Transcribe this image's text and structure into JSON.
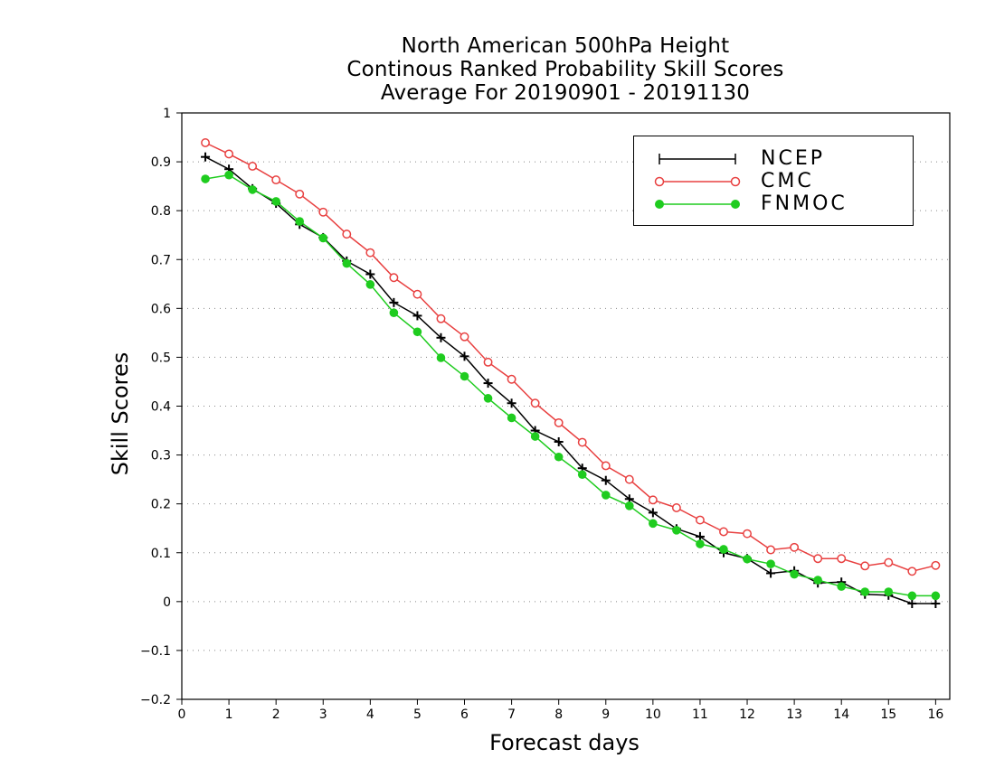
{
  "title": {
    "line1": "North American 500hPa Height",
    "line2": "Continous Ranked Probability Skill Scores",
    "line3": "Average For 20190901 - 20191130"
  },
  "chart_data": {
    "type": "line",
    "xlabel": "Forecast days",
    "ylabel": "Skill Scores",
    "xlim": [
      0,
      16.3
    ],
    "ylim": [
      -0.2,
      1
    ],
    "xticks": [
      "0",
      "1",
      "2",
      "3",
      "4",
      "5",
      "6",
      "7",
      "8",
      "9",
      "10",
      "11",
      "12",
      "13",
      "14",
      "15",
      "16"
    ],
    "yticks": [
      "1",
      "0.9",
      "0.8",
      "0.7",
      "0.6",
      "0.5",
      "0.4",
      "0.3",
      "0.2",
      "0.1",
      "0",
      "-0.1",
      "-0.2"
    ],
    "grid": "horizontal-dotted",
    "legend_position": "top-right",
    "x": [
      0.5,
      1,
      1.5,
      2,
      2.5,
      3,
      3.5,
      4,
      4.5,
      5,
      5.5,
      6,
      6.5,
      7,
      7.5,
      8,
      8.5,
      9,
      9.5,
      10,
      10.5,
      11,
      11.5,
      12,
      12.5,
      13,
      13.5,
      14,
      14.5,
      15,
      15.5,
      16
    ],
    "series": [
      {
        "name": "NCEP",
        "color": "#000000",
        "marker": "plus",
        "values": [
          0.91,
          0.885,
          0.845,
          0.815,
          0.772,
          0.745,
          0.697,
          0.67,
          0.612,
          0.585,
          0.54,
          0.502,
          0.447,
          0.406,
          0.35,
          0.327,
          0.273,
          0.248,
          0.21,
          0.182,
          0.149,
          0.133,
          0.1,
          0.088,
          0.058,
          0.063,
          0.038,
          0.04,
          0.015,
          0.013,
          -0.004,
          -0.004
        ]
      },
      {
        "name": "CMC",
        "color": "#e84040",
        "marker": "open-circle",
        "values": [
          0.939,
          0.916,
          0.891,
          0.863,
          0.834,
          0.797,
          0.752,
          0.714,
          0.663,
          0.629,
          0.579,
          0.542,
          0.49,
          0.455,
          0.406,
          0.366,
          0.326,
          0.278,
          0.25,
          0.208,
          0.192,
          0.167,
          0.143,
          0.139,
          0.106,
          0.111,
          0.088,
          0.088,
          0.073,
          0.08,
          0.062,
          0.074
        ]
      },
      {
        "name": "FNMOC",
        "color": "#1fcc1f",
        "marker": "filled-circle",
        "values": [
          0.865,
          0.873,
          0.843,
          0.819,
          0.778,
          0.744,
          0.692,
          0.649,
          0.591,
          0.552,
          0.499,
          0.461,
          0.416,
          0.376,
          0.338,
          0.296,
          0.26,
          0.218,
          0.196,
          0.16,
          0.146,
          0.118,
          0.107,
          0.087,
          0.077,
          0.056,
          0.044,
          0.031,
          0.02,
          0.02,
          0.012,
          0.012
        ]
      }
    ]
  }
}
